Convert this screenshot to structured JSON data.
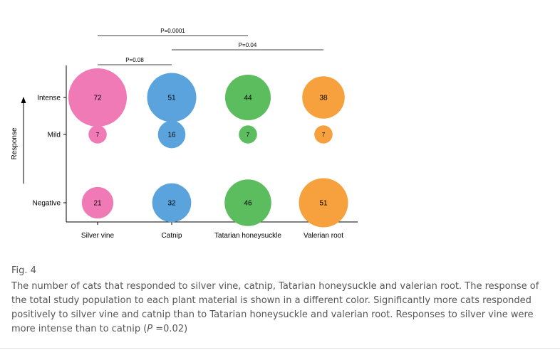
{
  "chart_data": {
    "type": "scatter",
    "categories": [
      "Silver vine",
      "Catnip",
      "Tatarian honeysuckle",
      "Valerian root"
    ],
    "responses": [
      "Intense",
      "Mild",
      "Negative"
    ],
    "ylabel": "Response",
    "xlabel": "",
    "series": [
      {
        "category": "Silver vine",
        "color": "#f07ab6",
        "values": {
          "Intense": 72,
          "Mild": 7,
          "Negative": 21
        }
      },
      {
        "category": "Catnip",
        "color": "#5aa3dc",
        "values": {
          "Intense": 51,
          "Mild": 16,
          "Negative": 32
        }
      },
      {
        "category": "Tatarian honeysuckle",
        "color": "#5cbd5f",
        "values": {
          "Intense": 44,
          "Mild": 7,
          "Negative": 46
        }
      },
      {
        "category": "Valerian root",
        "color": "#f6a03e",
        "values": {
          "Intense": 38,
          "Mild": 7,
          "Negative": 51
        }
      }
    ],
    "significance": [
      {
        "from": "Silver vine",
        "to": "Tatarian honeysuckle",
        "label": "P=0.0001"
      },
      {
        "from": "Catnip",
        "to": "Valerian root",
        "label": "P=0.04"
      },
      {
        "from": "Silver vine",
        "to": "Catnip",
        "label": "P=0.08"
      }
    ]
  },
  "caption": {
    "figure_label": "Fig. 4",
    "text_before": "The number of cats that responded to silver vine, catnip, Tatarian honeysuckle and valerian root. The response of the total study population to each plant material is shown in a different color. Significantly more cats responded positively to silver vine and catnip than to Tatarian honeysuckle and valerian root. Responses to silver vine were more intense than to catnip (",
    "p_symbol": "P",
    "text_after": " =0.02)"
  }
}
